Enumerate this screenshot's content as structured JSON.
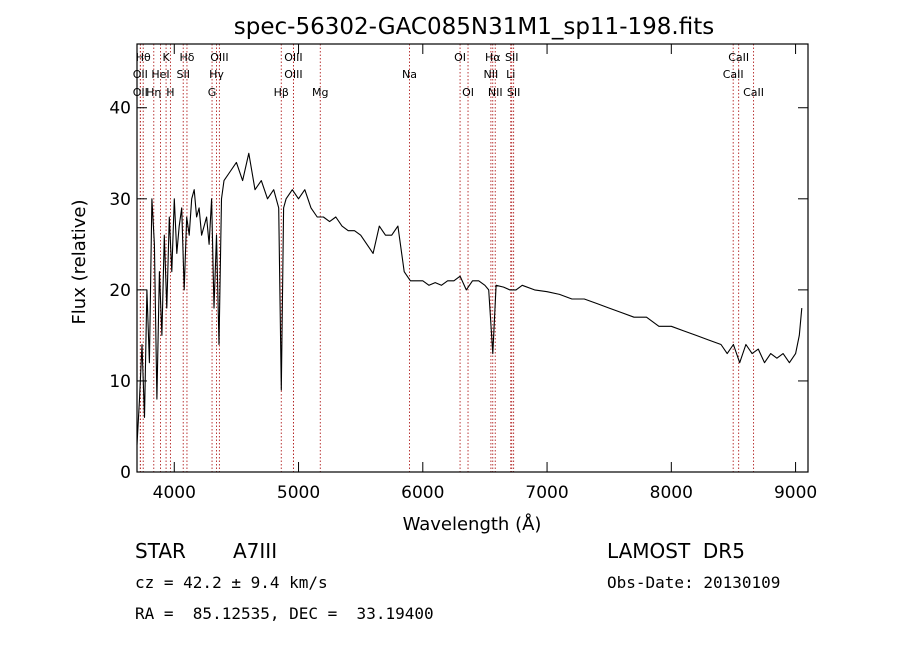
{
  "chart_data": {
    "type": "line",
    "title": "spec-56302-GAC085N31M1_sp11-198.fits",
    "xlabel": "Wavelength (Å)",
    "ylabel": "Flux (relative)",
    "xlim": [
      3700,
      9100
    ],
    "ylim": [
      0,
      47
    ],
    "xticks": [
      4000,
      5000,
      6000,
      7000,
      8000,
      9000
    ],
    "yticks": [
      0,
      10,
      20,
      30,
      40
    ],
    "grid": false,
    "legend": "none",
    "series": [
      {
        "x": [
          3700,
          3720,
          3740,
          3760,
          3780,
          3800,
          3820,
          3840,
          3860,
          3880,
          3900,
          3920,
          3940,
          3960,
          3980,
          4000,
          4020,
          4040,
          4060,
          4080,
          4100,
          4120,
          4140,
          4160,
          4180,
          4200,
          4220,
          4240,
          4260,
          4280,
          4300,
          4320,
          4340,
          4360,
          4380,
          4400,
          4450,
          4500,
          4550,
          4600,
          4650,
          4700,
          4750,
          4800,
          4840,
          4861,
          4880,
          4900,
          4950,
          5000,
          5050,
          5100,
          5150,
          5200,
          5250,
          5300,
          5350,
          5400,
          5450,
          5500,
          5550,
          5600,
          5650,
          5700,
          5750,
          5800,
          5850,
          5900,
          5950,
          6000,
          6050,
          6100,
          6150,
          6200,
          6250,
          6300,
          6350,
          6400,
          6450,
          6500,
          6530,
          6563,
          6590,
          6650,
          6700,
          6750,
          6800,
          6900,
          7000,
          7100,
          7200,
          7300,
          7400,
          7500,
          7600,
          7700,
          7800,
          7900,
          8000,
          8100,
          8200,
          8300,
          8400,
          8450,
          8500,
          8550,
          8600,
          8650,
          8700,
          8750,
          8800,
          8850,
          8900,
          8950,
          9000,
          9030,
          9050
        ],
        "y": [
          3,
          8,
          14,
          6,
          20,
          12,
          30,
          25,
          8,
          22,
          15,
          26,
          18,
          28,
          22,
          30,
          24,
          27,
          29,
          20,
          28,
          26,
          30,
          31,
          28,
          29,
          26,
          27,
          28,
          25,
          30,
          18,
          26,
          14,
          30,
          32,
          33,
          34,
          32,
          35,
          31,
          32,
          30,
          31,
          29,
          9,
          29,
          30,
          31,
          30,
          31,
          29,
          28,
          28,
          27.5,
          28,
          27,
          26.5,
          26.5,
          26,
          25,
          24,
          27,
          26,
          26,
          27,
          22,
          21,
          21,
          21,
          20.5,
          20.8,
          20.5,
          21,
          21,
          21.5,
          20,
          21,
          21,
          20.5,
          20,
          13,
          20.5,
          20.3,
          20,
          20,
          20.5,
          20,
          19.8,
          19.5,
          19,
          19,
          18.5,
          18,
          17.5,
          17,
          17,
          16,
          16,
          15.5,
          15,
          14.5,
          14,
          13,
          14,
          12,
          14,
          13,
          13.5,
          12,
          13,
          12.5,
          13,
          12,
          13,
          15,
          18
        ]
      }
    ],
    "lines": [
      {
        "label": "Hθ",
        "x": 3750,
        "row": 0
      },
      {
        "label": "K",
        "x": 3934,
        "row": 0
      },
      {
        "label": "Hδ",
        "x": 4102,
        "row": 0
      },
      {
        "label": "OIII",
        "x": 4363,
        "row": 0
      },
      {
        "label": "OIII",
        "x": 4959,
        "row": 0
      },
      {
        "label": "OI",
        "x": 6300,
        "row": 0
      },
      {
        "label": "Hα",
        "x": 6563,
        "row": 0
      },
      {
        "label": "SII",
        "x": 6716,
        "row": 0
      },
      {
        "label": "CaII",
        "x": 8542,
        "row": 0
      },
      {
        "label": "OII",
        "x": 3727,
        "row": 1
      },
      {
        "label": "HeI",
        "x": 3889,
        "row": 1
      },
      {
        "label": "SII",
        "x": 4072,
        "row": 1
      },
      {
        "label": "Hγ",
        "x": 4340,
        "row": 1
      },
      {
        "label": "OIII",
        "x": 4959,
        "row": 1
      },
      {
        "label": "Na",
        "x": 5893,
        "row": 1
      },
      {
        "label": "NII",
        "x": 6548,
        "row": 1
      },
      {
        "label": "Li",
        "x": 6708,
        "row": 1
      },
      {
        "label": "CaII",
        "x": 8498,
        "row": 1
      },
      {
        "label": "OII",
        "x": 3727,
        "row": 2
      },
      {
        "label": "Hη",
        "x": 3835,
        "row": 2
      },
      {
        "label": "H",
        "x": 3969,
        "row": 2
      },
      {
        "label": "G",
        "x": 4304,
        "row": 2
      },
      {
        "label": "Hβ",
        "x": 4861,
        "row": 2
      },
      {
        "label": "Mg",
        "x": 5175,
        "row": 2
      },
      {
        "label": "OI",
        "x": 6364,
        "row": 2
      },
      {
        "label": "NII",
        "x": 6583,
        "row": 2
      },
      {
        "label": "SII",
        "x": 6731,
        "row": 2
      },
      {
        "label": "CaII",
        "x": 8662,
        "row": 2
      }
    ]
  },
  "info": {
    "object_class": "STAR",
    "subclass": "A7III",
    "survey": "LAMOST  DR5",
    "redshift": "cz = 42.2 ± 9.4 km/s",
    "obs_date": "Obs-Date: 20130109",
    "coords": "RA =  85.12535, DEC =  33.19400"
  },
  "colors": {
    "spectrum": "#000000",
    "line_markers": "#b22222",
    "axes": "#000000",
    "background": "#ffffff"
  }
}
